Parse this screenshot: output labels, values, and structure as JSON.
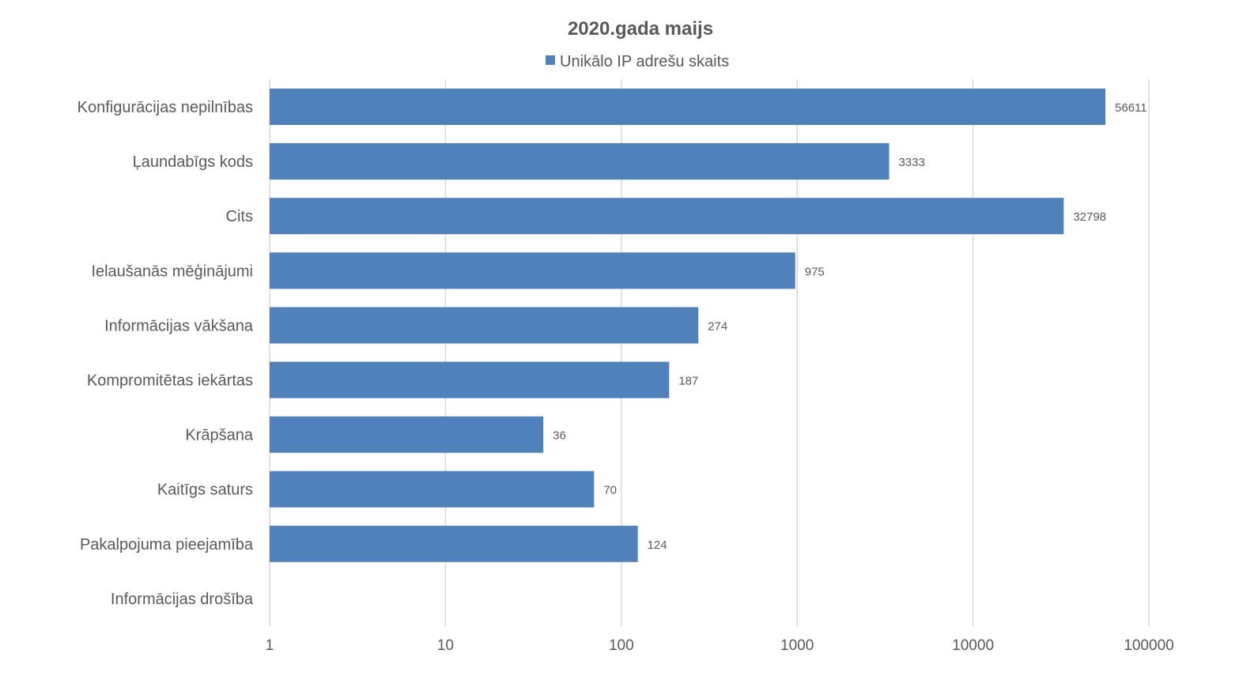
{
  "chart_data": {
    "type": "bar",
    "orientation": "horizontal",
    "title": "2020.gada maijs",
    "xscale": "log",
    "xlim": [
      1,
      100000
    ],
    "xticks": [
      "1",
      "10",
      "100",
      "1000",
      "10000",
      "100000"
    ],
    "xtick_values": [
      1,
      10,
      100,
      1000,
      10000,
      100000
    ],
    "grid": true,
    "legend_position": "top",
    "categories": [
      "Konfigurācijas nepilnības",
      "Ļaundabīgs kods",
      "Cits",
      "Ielaušanās mēģinājumi",
      "Informācijas vākšana",
      "Kompromitētas iekārtas",
      "Krāpšana",
      "Kaitīgs saturs",
      "Pakalpojuma pieejamība",
      "Informācijas drošība"
    ],
    "series": [
      {
        "name": "Unikālo IP adrešu skaits",
        "color": "#4f81bd",
        "values": [
          56611,
          3333,
          32798,
          975,
          274,
          187,
          36,
          70,
          124,
          null
        ],
        "labels": [
          "56611",
          "3333",
          "32798",
          "975",
          "274",
          "187",
          "36",
          "70",
          "124",
          ""
        ]
      }
    ],
    "gridline_color": "#d9d9d9"
  }
}
